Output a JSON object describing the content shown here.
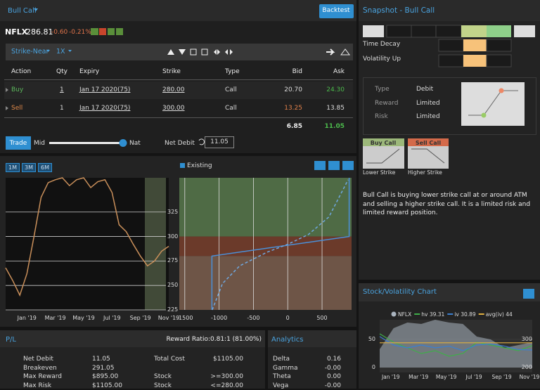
{
  "header": {
    "strategy": "Bull Call",
    "backtest": "Backtest"
  },
  "quote": {
    "symbol": "NFLX",
    "price": "286.81",
    "change": "-0.60",
    "change_pct": "-0.21%"
  },
  "toolbar": {
    "strike_mode": "Strike-Near",
    "multiplier": "1X"
  },
  "legs_table": {
    "columns": [
      "Action",
      "Qty",
      "Expiry",
      "Strike",
      "Type",
      "Bid",
      "Ask"
    ],
    "rows": [
      [
        "Buy",
        "1",
        "Jan 17 2020(75)",
        "280.00",
        "Call",
        "20.70",
        "24.30"
      ],
      [
        "Sell",
        "1",
        "Jan 17 2020(75)",
        "300.00",
        "Call",
        "13.25",
        "13.85"
      ]
    ],
    "totals": {
      "bid": "6.85",
      "ask": "11.05"
    }
  },
  "trade_bar": {
    "trade": "Trade",
    "mid": "Mid",
    "nat": "Nat",
    "net_label": "Net Debit",
    "net_value": "11.05"
  },
  "chart_controls": {
    "ranges": [
      "1M",
      "3M",
      "6M"
    ],
    "existing": "Existing"
  },
  "price_chart": {
    "type": "line",
    "color": "#c98f5a",
    "categories": [
      null,
      null,
      null,
      "Jan '19",
      null,
      null,
      null,
      "Mar '19",
      null,
      null,
      null,
      "May '19",
      null,
      null,
      null,
      "Jul '19",
      null,
      null,
      null,
      "Sep '19",
      null,
      null,
      null,
      "Nov '19"
    ],
    "values": [
      268,
      255,
      240,
      262,
      300,
      340,
      355,
      358,
      360,
      352,
      358,
      360,
      350,
      356,
      358,
      345,
      312,
      305,
      292,
      280,
      270,
      275,
      285,
      290
    ],
    "ylim": [
      225,
      360
    ],
    "yticks": [
      225,
      250,
      275,
      300,
      325
    ]
  },
  "pl_chart": {
    "type": "line",
    "xlim": [
      -1580,
      930
    ],
    "xticks": [
      -1500,
      -1000,
      -500,
      0,
      500
    ],
    "ylim": [
      225,
      360
    ],
    "series": [
      {
        "color": "#4a90d9",
        "x": [
          -1105,
          -1105,
          895,
          895
        ],
        "values": [
          225,
          280,
          300,
          360
        ]
      },
      {
        "color": "#6fa8e0",
        "dashed": true,
        "x": [
          -1100,
          -950,
          -700,
          -300,
          0,
          300,
          600,
          880
        ],
        "values": [
          225,
          252,
          270,
          284,
          292,
          302,
          320,
          358
        ]
      }
    ]
  },
  "pl_panel": {
    "title": "P/L",
    "reward_ratio": "Reward Ratio:0.81:1 (81.00%)",
    "rows": [
      [
        "Net Debit",
        "11.05",
        "Total Cost",
        "$1105.00"
      ],
      [
        "Breakeven",
        "291.05",
        null,
        null
      ],
      [
        "Max Reward",
        "$895.00",
        "Stock",
        ">=300.00"
      ],
      [
        "Max Risk",
        "$1105.00",
        "Stock",
        "<=280.00"
      ]
    ]
  },
  "analytics": {
    "title": "Analytics",
    "rows": [
      [
        "Delta",
        "0.16"
      ],
      [
        "Gamma",
        "-0.00"
      ],
      [
        "Theta",
        "0.00"
      ],
      [
        "Vega",
        "-0.00"
      ]
    ]
  },
  "snapshot": {
    "title": "Snapshot - Bull Call",
    "time_decay": "Time Decay",
    "volatility_up": "Volatility Up",
    "profile": [
      [
        "Type",
        "Debit"
      ],
      [
        "Reward",
        "Limited"
      ],
      [
        "Risk",
        "Limited"
      ]
    ],
    "legs": [
      {
        "title": "Buy Call",
        "caption": "Lower Strike"
      },
      {
        "title": "Sell Call",
        "caption": "Higher Strike"
      }
    ],
    "description": "Bull Call is buying lower strike call at or around ATM and selling a higher strike call. It is a limited risk and limited reward position."
  },
  "vol_chart": {
    "type": "line",
    "title": "Stock/Volatility Chart",
    "categories": [
      null,
      "Jan '19",
      null,
      "Mar '19",
      null,
      "May '19",
      null,
      "Jul '19",
      null,
      "Sep '19",
      null,
      "Nov '19"
    ],
    "ylim": [
      0,
      85
    ],
    "yticks": [
      0,
      50
    ],
    "y2lim": [
      200,
      370
    ],
    "y2ticks": [
      200,
      300
    ],
    "series": [
      {
        "name": "NFLX",
        "color": "#aab4bf",
        "axis": "y2",
        "values": [
          265,
          340,
          360,
          355,
          370,
          360,
          355,
          310,
          300,
          270,
          280,
          290
        ]
      },
      {
        "name": "hv 39.31",
        "color": "#3fae49",
        "values": [
          60,
          45,
          35,
          25,
          30,
          20,
          25,
          45,
          40,
          35,
          30,
          39
        ]
      },
      {
        "name": "iv 30.89",
        "color": "#3b7fd0",
        "values": [
          55,
          40,
          35,
          40,
          35,
          38,
          30,
          40,
          42,
          38,
          32,
          31
        ]
      },
      {
        "name": "avg(iv) 44",
        "color": "#e0b040",
        "values": [
          44,
          44,
          44,
          44,
          44,
          44,
          44,
          44,
          44,
          44,
          44,
          44
        ]
      }
    ]
  }
}
